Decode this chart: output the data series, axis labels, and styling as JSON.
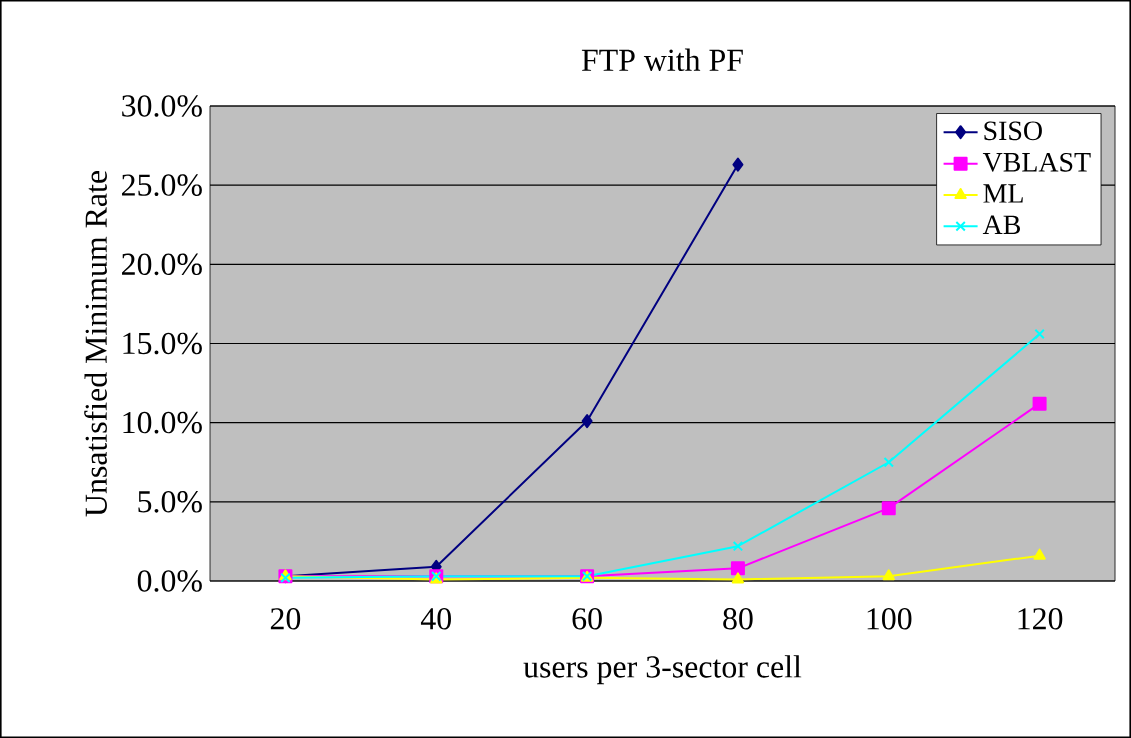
{
  "chart_data": {
    "type": "line",
    "title": "FTP with PF",
    "xlabel": "users per 3-sector cell",
    "ylabel": "Unsatisfied Minimum Rate",
    "categories": [
      "20",
      "40",
      "60",
      "80",
      "100",
      "120"
    ],
    "series": [
      {
        "name": "SISO",
        "color": "#000080",
        "marker": "diamond",
        "values": [
          0.3,
          0.9,
          10.1,
          26.3,
          null,
          null
        ]
      },
      {
        "name": "VBLAST",
        "color": "#ff00ff",
        "marker": "square",
        "values": [
          0.3,
          0.3,
          0.3,
          0.8,
          4.6,
          11.2
        ]
      },
      {
        "name": "ML",
        "color": "#ffff00",
        "marker": "triangle",
        "values": [
          0.3,
          0.1,
          0.2,
          0.1,
          0.3,
          1.6
        ]
      },
      {
        "name": "AB",
        "color": "#00ffff",
        "marker": "cross",
        "values": [
          0.2,
          0.3,
          0.3,
          2.2,
          7.5,
          15.6
        ]
      }
    ],
    "ylim": [
      0,
      30
    ],
    "yticks": [
      {
        "value": 0,
        "label": "0.0%"
      },
      {
        "value": 5,
        "label": "5.0%"
      },
      {
        "value": 10,
        "label": "10.0%"
      },
      {
        "value": 15,
        "label": "15.0%"
      },
      {
        "value": 20,
        "label": "20.0%"
      },
      {
        "value": 25,
        "label": "25.0%"
      },
      {
        "value": 30,
        "label": "30.0%"
      }
    ],
    "grid": "y",
    "legend": "top right"
  }
}
